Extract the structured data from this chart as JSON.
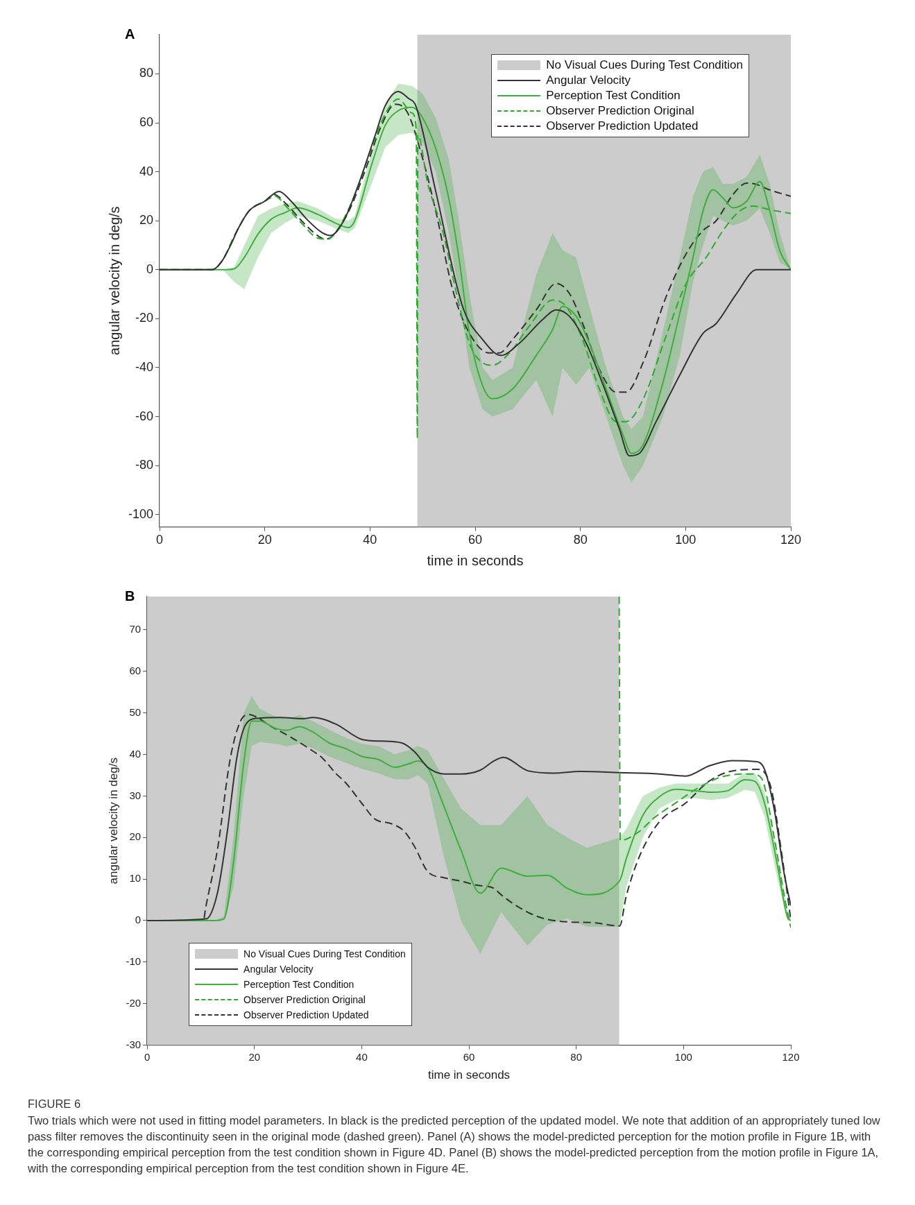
{
  "chart_data": [
    {
      "type": "line",
      "xlabel": "time in seconds",
      "ylabel": "angular velocity in deg/s",
      "xlim": [
        0,
        120
      ],
      "xticks": [
        0,
        20,
        40,
        60,
        80,
        100,
        120
      ],
      "ylim": [
        -105,
        96
      ],
      "yticks": [
        -100,
        -80,
        -60,
        -40,
        -20,
        0,
        20,
        40,
        60,
        80
      ],
      "legend": "top right",
      "annotations": [
        "A"
      ],
      "bands": [
        {
          "axis": "x",
          "from": 49,
          "to": 120,
          "label": "No Visual Cues During Test Condition",
          "color": "#cccccc"
        }
      ],
      "series": [
        {
          "name": "Angular Velocity",
          "color": "#333333",
          "x": [
            0,
            10,
            11.7,
            13.5,
            15,
            17,
            20,
            22.7,
            25,
            28,
            31,
            32.5,
            35,
            37.8,
            41,
            42.9,
            45.4,
            47.3,
            48.7,
            52.5,
            57.6,
            61.4,
            64.9,
            68.4,
            72.8,
            75.4,
            77.9,
            81.1,
            84.3,
            87.4,
            89.3,
            91.2,
            94.4,
            98.9,
            103.3,
            105.8,
            109.7,
            113.5,
            120
          ],
          "values": [
            0,
            0,
            3,
            10,
            17,
            24,
            28,
            32,
            28,
            20.6,
            15,
            14,
            20,
            34.7,
            55,
            67,
            72.8,
            70,
            67,
            32,
            -15,
            -28.5,
            -35,
            -30,
            -20.4,
            -16.4,
            -19,
            -30,
            -47,
            -65,
            -76,
            -75,
            -62,
            -43,
            -26,
            -22,
            -9.7,
            0,
            0
          ]
        },
        {
          "name": "Perception Test Condition",
          "color": "#3fae3f",
          "x": [
            0,
            12,
            14.2,
            16.1,
            18.7,
            21.2,
            23.8,
            26.3,
            30.1,
            33.3,
            35.9,
            37.1,
            40.3,
            42.9,
            45.4,
            48,
            50,
            52.5,
            55,
            56.9,
            58.9,
            61.4,
            63.3,
            67.1,
            71.6,
            74.7,
            76.6,
            79.2,
            81.7,
            84.9,
            88.1,
            89.7,
            91.9,
            95.7,
            98.9,
            101.4,
            103.3,
            105.2,
            107.1,
            109,
            111.6,
            114.1,
            116,
            117.9,
            120
          ],
          "values": [
            0,
            0,
            0.4,
            5,
            14.5,
            20.6,
            23.3,
            25.3,
            22.6,
            19.2,
            17.2,
            20,
            42.8,
            59,
            65,
            66.3,
            62,
            49.5,
            29,
            5,
            -26,
            -47.3,
            -52.7,
            -48.7,
            -35,
            -24.5,
            -15,
            -19,
            -30,
            -48.7,
            -67.5,
            -75,
            -71.5,
            -46,
            -17.8,
            5,
            24,
            32.7,
            29.3,
            25.3,
            28,
            36,
            24,
            7.8,
            0
          ],
          "upper": [
            0,
            0,
            1,
            10,
            22,
            25,
            27,
            28,
            25,
            21,
            20,
            22,
            48,
            68,
            76,
            75,
            72,
            62,
            45,
            20,
            -10,
            -40,
            -45,
            -40,
            -2,
            15,
            8,
            5,
            -15,
            -40,
            -60,
            -65,
            -60,
            -25,
            5,
            30,
            40,
            42,
            35,
            35,
            38,
            47,
            35,
            15,
            0
          ],
          "lower": [
            0,
            0,
            -5,
            -8,
            5,
            15,
            19,
            22,
            20,
            17,
            15,
            17,
            35,
            50,
            55,
            56,
            52,
            40,
            15,
            -10,
            -40,
            -57,
            -60,
            -57,
            -45,
            -60,
            -40,
            -47,
            -40,
            -60,
            -80,
            -87,
            -80,
            -60,
            -35,
            -5,
            10,
            22,
            20,
            18,
            20,
            25,
            15,
            3,
            0
          ]
        },
        {
          "name": "Observer Prediction Original",
          "color": "#2eaa2e",
          "line_style": "dashed",
          "x": [
            0,
            10,
            12,
            14.5,
            17,
            20,
            22,
            24,
            27,
            30,
            32,
            34,
            37,
            40,
            43,
            45.4,
            48,
            48.8,
            49,
            49.1,
            51,
            53.8,
            56.3,
            58.9,
            61.4,
            63.3,
            66.5,
            70.3,
            74.7,
            77.3,
            80.4,
            83.6,
            86.8,
            88.7,
            91.9,
            96.3,
            100.1,
            103.9,
            107.1,
            110.3,
            112.8,
            116,
            120
          ],
          "values": [
            0,
            0,
            4,
            15,
            24,
            28,
            30,
            26,
            19,
            13,
            12.5,
            17,
            30,
            48,
            64,
            69.7,
            64,
            57,
            -69,
            55,
            35,
            16,
            -8.3,
            -30,
            -38,
            -39,
            -34,
            -23,
            -12.4,
            -15,
            -28.5,
            -48.7,
            -62,
            -62,
            -53,
            -27,
            -5.6,
            5,
            16,
            24,
            26,
            24.5,
            23
          ]
        },
        {
          "name": "Observer Prediction Updated",
          "color": "#333333",
          "line_style": "dashed",
          "x": [
            0,
            10,
            12,
            14.5,
            17,
            20,
            21.8,
            24,
            27,
            30,
            31.5,
            33,
            36,
            39,
            42,
            44.8,
            46,
            47.4,
            50,
            52.5,
            55.7,
            58.9,
            62.7,
            64.6,
            67.1,
            71.6,
            75.4,
            77.9,
            80.4,
            83.6,
            86.8,
            88.7,
            91.9,
            96.3,
            100.1,
            103.3,
            105.8,
            109,
            111.6,
            113.5,
            116,
            120
          ],
          "values": [
            0,
            0,
            4,
            15,
            24,
            28,
            30.7,
            27,
            20,
            14,
            12.5,
            14,
            24,
            40,
            58,
            67.6,
            67,
            63,
            45.5,
            24,
            -8,
            -26,
            -34,
            -34,
            -28.5,
            -16.4,
            -5.6,
            -9.7,
            -21.8,
            -40.6,
            -50,
            -50,
            -38,
            -11,
            6.5,
            16,
            20,
            30.7,
            35.4,
            34.8,
            32.6,
            30
          ]
        }
      ]
    },
    {
      "type": "line",
      "xlabel": "time in seconds",
      "ylabel": "angular velocity in deg/s",
      "xlim": [
        0,
        120
      ],
      "xticks": [
        0,
        20,
        40,
        60,
        80,
        100,
        120
      ],
      "ylim": [
        -30,
        78
      ],
      "yticks": [
        -30,
        -20,
        -10,
        0,
        10,
        20,
        30,
        40,
        50,
        60,
        70
      ],
      "legend": "bottom left",
      "annotations": [
        "B",
        "FIGURE 6",
        "Two trials which were not used in fitting model parameters. In black is the predicted perception of the updated model. We note that addition of an appropriately tuned low pass filter removes the discontinuity seen in the original mode (dashed green). Panel (A) shows the model-predicted perception for the motion profile in Figure 1B, with the corresponding empirical perception from the test condition shown in Figure 4D. Panel (B) shows the model-predicted perception from the motion profile in Figure 1A, with the corresponding empirical perception from the test condition shown in Figure 4E."
      ],
      "bands": [
        {
          "axis": "x",
          "from": 0,
          "to": 88,
          "label": "No Visual Cues During Test Condition",
          "color": "#cccccc"
        }
      ],
      "series": [
        {
          "name": "Angular Velocity",
          "color": "#333333",
          "x": [
            0,
            11,
            13.1,
            14.9,
            16.7,
            18.3,
            20.5,
            24.7,
            29,
            30.9,
            35.2,
            40.1,
            43.7,
            47.4,
            49.9,
            52.3,
            55.4,
            58.5,
            62.1,
            64.6,
            66.4,
            70.9,
            75.8,
            80.7,
            88.1,
            95.5,
            100.4,
            104.7,
            109,
            113.3,
            115.1,
            116.9,
            118.8,
            120
          ],
          "values": [
            0,
            0.4,
            6.6,
            21,
            39,
            47,
            48.7,
            48.9,
            48.6,
            48.9,
            47.3,
            43.6,
            43.2,
            42.8,
            40.6,
            36.9,
            35.3,
            35.3,
            36.2,
            38.4,
            39.3,
            36.1,
            35.5,
            35.9,
            35.6,
            35.3,
            34.8,
            37.2,
            38.5,
            38.3,
            36.4,
            26.8,
            11,
            3.6
          ]
        },
        {
          "name": "Perception Test Condition",
          "color": "#3fae3f",
          "x": [
            0,
            12.5,
            14.3,
            16.1,
            18,
            19.5,
            21,
            24.1,
            26,
            28.4,
            30.9,
            33.9,
            37,
            40.1,
            43.1,
            46.2,
            48.7,
            50.5,
            52.3,
            55.4,
            58.5,
            62.1,
            66,
            70.9,
            74.6,
            78.3,
            82,
            88.1,
            89.3,
            92.4,
            95.5,
            98.5,
            101.6,
            105.3,
            108.3,
            111.4,
            113.3,
            115.1,
            117.5,
            119.4,
            120
          ],
          "values": [
            0,
            0,
            0.4,
            14,
            37.8,
            48,
            48,
            46.2,
            45.8,
            46.7,
            45.4,
            42.8,
            41.4,
            39.5,
            38.8,
            36.9,
            37.7,
            38.4,
            36.9,
            27.3,
            17,
            6.6,
            12.6,
            10.7,
            10.9,
            7.8,
            6.2,
            9.6,
            14.8,
            25.3,
            29.8,
            31.6,
            31.3,
            30.9,
            31.3,
            33.9,
            33.5,
            28.3,
            13.3,
            0.7,
            0
          ],
          "upper": [
            0,
            0,
            1,
            20,
            50,
            54,
            51,
            49,
            48.5,
            49.5,
            48,
            46,
            44,
            42.5,
            42,
            40,
            41,
            42,
            41,
            34,
            27,
            23,
            23,
            30,
            23,
            20,
            17.5,
            20,
            22,
            30,
            32,
            33,
            33,
            33,
            33,
            35.5,
            35.5,
            31,
            16,
            2,
            0
          ],
          "lower": [
            0,
            0,
            0,
            8,
            30,
            42,
            43,
            42.5,
            42,
            42.5,
            41.5,
            39.5,
            38,
            36.5,
            35.5,
            34,
            34,
            35,
            33,
            15,
            0,
            -8,
            2,
            -6,
            -1,
            0.5,
            -1.5,
            -1.5,
            8,
            20,
            27,
            29,
            29.5,
            29,
            29.5,
            31.5,
            31,
            25,
            10,
            0,
            0
          ]
        },
        {
          "name": "Observer Prediction Original",
          "color": "#2eaa2e",
          "line_style": "dashed",
          "x": [
            0,
            12,
            13,
            88,
            88.2,
            91.8,
            94.3,
            98.5,
            102.8,
            107.1,
            112.6,
            114.5,
            117,
            118.8,
            120
          ],
          "values": [
            0,
            0,
            null,
            78,
            19.3,
            21.5,
            24.5,
            28.3,
            32,
            34.6,
            35.3,
            34.3,
            19.3,
            5.8,
            -1.7
          ]
        },
        {
          "name": "Observer Prediction Updated",
          "color": "#333333",
          "line_style": "dashed",
          "x": [
            0,
            10.5,
            10.9,
            13.1,
            15.5,
            17.4,
            18.9,
            20.4,
            22.9,
            26.6,
            30.2,
            32.7,
            35.2,
            37,
            40.1,
            42.5,
            45.6,
            48,
            49.9,
            52.3,
            55.4,
            58.5,
            61.5,
            64.6,
            66,
            69.7,
            73.4,
            78.3,
            83.2,
            88.1,
            89.3,
            91.8,
            95.5,
            100.4,
            104.7,
            109,
            113.9,
            116.3,
            118.2,
            120
          ],
          "values": [
            0,
            0,
            3,
            17,
            39,
            48,
            49.6,
            49,
            46.9,
            44.3,
            41.4,
            39.1,
            35.4,
            33.2,
            28.1,
            24.4,
            23.3,
            21.4,
            17.7,
            11.8,
            10.3,
            9.5,
            8.5,
            7.8,
            6.2,
            2.9,
            0.7,
            -0.3,
            -0.5,
            -1.3,
            5.8,
            15.5,
            23.8,
            28.3,
            33.5,
            36,
            36.4,
            32,
            17,
            0.2
          ]
        }
      ]
    }
  ]
}
